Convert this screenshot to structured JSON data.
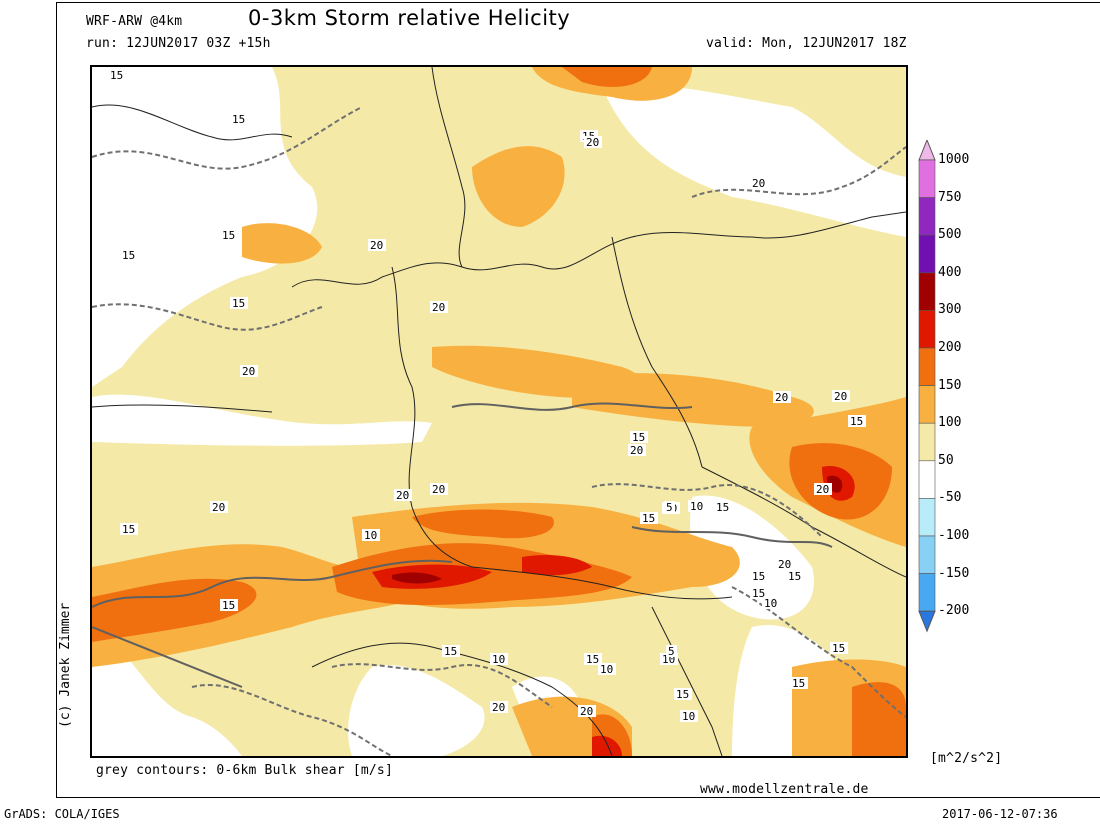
{
  "header": {
    "model": "WRF-ARW @4km",
    "title": "0-3km Storm relative Helicity",
    "run": "run: 12JUN2017 03Z +15h",
    "valid": "valid: Mon, 12JUN2017 18Z"
  },
  "footer": {
    "contour_note": "grey contours: 0-6km Bulk shear [m/s]",
    "website": "www.modellzentrale.de",
    "software": "GrADS: COLA/IGES",
    "timestamp": "2017-06-12-07:36"
  },
  "credit": "(c) Janek Zimmer",
  "legend": {
    "unit": "[m^2/s^2]",
    "levels": [
      "1000",
      "750",
      "500",
      "400",
      "300",
      "200",
      "150",
      "100",
      "50",
      "-50",
      "-100",
      "-150",
      "-200"
    ],
    "colors": [
      "#f0b8e8",
      "#e070e0",
      "#9028c0",
      "#7010b0",
      "#a00000",
      "#e01800",
      "#f07010",
      "#f8b040",
      "#f4e9a6",
      "#ffffff",
      "#b8ecf8",
      "#88d0f4",
      "#48a8f0",
      "#2878e0"
    ]
  },
  "map": {
    "contour_labels": [
      "15",
      "15",
      "15",
      "15",
      "20",
      "15",
      "20",
      "20",
      "15",
      "20",
      "20",
      "20",
      "20",
      "20",
      "15",
      "10",
      "20",
      "20",
      "20",
      "15",
      "15",
      "15",
      "10",
      "5",
      "10",
      "15",
      "15",
      "15",
      "15",
      "20",
      "20",
      "15",
      "10",
      "15",
      "10",
      "10",
      "5",
      "15",
      "10",
      "20",
      "15",
      "15",
      "20",
      "15",
      "10"
    ]
  }
}
